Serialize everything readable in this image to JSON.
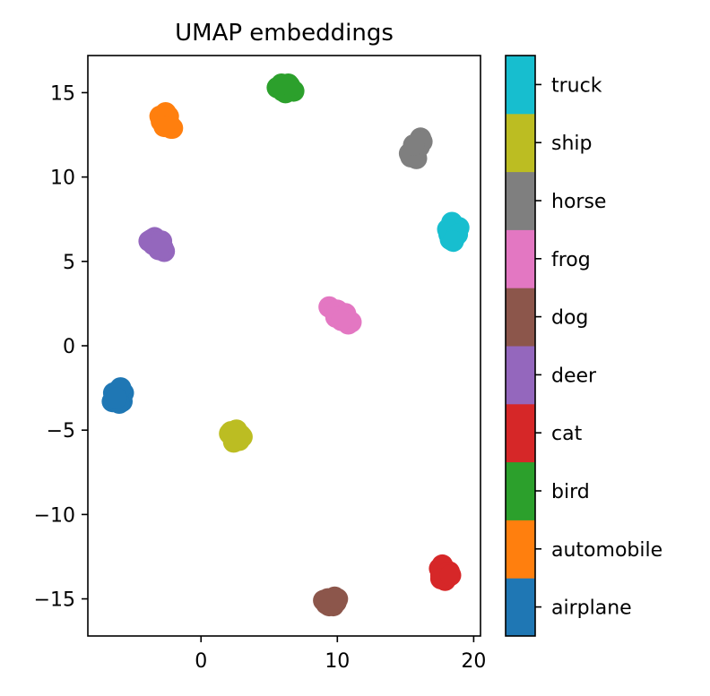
{
  "chart_data": {
    "type": "scatter",
    "title": "UMAP embeddings",
    "xlabel": "",
    "ylabel": "",
    "xlim": [
      -8.3,
      20.5
    ],
    "ylim": [
      -17.2,
      17.2
    ],
    "xticks": [
      0,
      10,
      20
    ],
    "yticks": [
      -15,
      -10,
      -5,
      0,
      5,
      10,
      15
    ],
    "xtick_labels": [
      "0",
      "10",
      "20"
    ],
    "ytick_labels": [
      "−15",
      "−10",
      "−5",
      "0",
      "5",
      "10",
      "15"
    ],
    "grid": false,
    "colorbar": {
      "labels": [
        "airplane",
        "automobile",
        "bird",
        "cat",
        "deer",
        "dog",
        "frog",
        "horse",
        "ship",
        "truck"
      ],
      "colors": [
        "#1f77b4",
        "#ff7f0e",
        "#2ca02c",
        "#d62728",
        "#9467bd",
        "#8c564b",
        "#e377c2",
        "#7f7f7f",
        "#bcbd22",
        "#17becf"
      ]
    },
    "clusters": [
      {
        "class": "airplane",
        "color": "#1f77b4",
        "points": [
          [
            -6.3,
            -3.0
          ],
          [
            -6.0,
            -2.6
          ],
          [
            -5.8,
            -3.3
          ],
          [
            -6.5,
            -3.3
          ],
          [
            -6.1,
            -2.9
          ],
          [
            -5.7,
            -2.8
          ],
          [
            -6.4,
            -2.8
          ],
          [
            -6.0,
            -3.4
          ],
          [
            -5.9,
            -2.5
          ],
          [
            -6.2,
            -3.1
          ]
        ]
      },
      {
        "class": "automobile",
        "color": "#ff7f0e",
        "points": [
          [
            -2.8,
            13.5
          ],
          [
            -2.5,
            13.2
          ],
          [
            -2.2,
            12.9
          ],
          [
            -3.0,
            13.6
          ],
          [
            -2.6,
            13.8
          ],
          [
            -2.3,
            13.1
          ],
          [
            -2.9,
            13.3
          ],
          [
            -2.4,
            13.6
          ],
          [
            -2.1,
            12.9
          ],
          [
            -2.7,
            13.0
          ]
        ]
      },
      {
        "class": "bird",
        "color": "#2ca02c",
        "points": [
          [
            5.8,
            15.3
          ],
          [
            6.2,
            15.4
          ],
          [
            6.6,
            15.2
          ],
          [
            6.0,
            15.1
          ],
          [
            6.4,
            15.5
          ],
          [
            5.6,
            15.3
          ],
          [
            6.8,
            15.1
          ],
          [
            6.2,
            15.0
          ],
          [
            6.5,
            15.4
          ],
          [
            5.9,
            15.5
          ]
        ]
      },
      {
        "class": "cat",
        "color": "#d62728",
        "points": [
          [
            17.8,
            -13.3
          ],
          [
            17.6,
            -13.6
          ],
          [
            18.1,
            -13.7
          ],
          [
            17.9,
            -13.9
          ],
          [
            18.2,
            -13.4
          ],
          [
            17.5,
            -13.2
          ],
          [
            17.7,
            -13.0
          ],
          [
            18.0,
            -13.5
          ],
          [
            17.6,
            -13.8
          ],
          [
            18.3,
            -13.6
          ]
        ]
      },
      {
        "class": "deer",
        "color": "#9467bd",
        "points": [
          [
            -3.6,
            6.3
          ],
          [
            -3.2,
            6.1
          ],
          [
            -2.8,
            5.8
          ],
          [
            -3.4,
            6.4
          ],
          [
            -3.0,
            6.0
          ],
          [
            -2.7,
            5.6
          ],
          [
            -3.8,
            6.2
          ],
          [
            -3.1,
            5.7
          ],
          [
            -3.5,
            6.0
          ],
          [
            -2.9,
            6.2
          ]
        ]
      },
      {
        "class": "dog",
        "color": "#8c564b",
        "points": [
          [
            9.2,
            -15.3
          ],
          [
            9.6,
            -15.0
          ],
          [
            9.9,
            -15.2
          ],
          [
            9.4,
            -15.4
          ],
          [
            9.0,
            -15.1
          ],
          [
            9.8,
            -14.9
          ],
          [
            9.3,
            -15.0
          ],
          [
            9.7,
            -15.4
          ],
          [
            9.5,
            -15.2
          ],
          [
            10.0,
            -15.0
          ]
        ]
      },
      {
        "class": "frog",
        "color": "#e377c2",
        "points": [
          [
            9.4,
            2.3
          ],
          [
            9.8,
            2.0
          ],
          [
            10.2,
            1.8
          ],
          [
            10.5,
            1.6
          ],
          [
            10.8,
            1.3
          ],
          [
            10.0,
            2.1
          ],
          [
            10.6,
            1.9
          ],
          [
            11.0,
            1.4
          ],
          [
            9.9,
            1.7
          ],
          [
            10.3,
            1.5
          ]
        ]
      },
      {
        "class": "horse",
        "color": "#7f7f7f",
        "points": [
          [
            15.4,
            11.2
          ],
          [
            15.7,
            11.6
          ],
          [
            15.9,
            12.0
          ],
          [
            16.1,
            12.3
          ],
          [
            15.5,
            11.5
          ],
          [
            15.8,
            11.1
          ],
          [
            16.0,
            11.8
          ],
          [
            15.3,
            11.4
          ],
          [
            16.2,
            12.1
          ],
          [
            15.6,
            11.9
          ]
        ]
      },
      {
        "class": "ship",
        "color": "#bcbd22",
        "points": [
          [
            2.2,
            -5.1
          ],
          [
            2.5,
            -5.4
          ],
          [
            2.8,
            -5.6
          ],
          [
            2.3,
            -5.3
          ],
          [
            2.6,
            -5.0
          ],
          [
            2.9,
            -5.3
          ],
          [
            2.4,
            -5.7
          ],
          [
            2.1,
            -5.2
          ],
          [
            2.7,
            -5.5
          ],
          [
            3.0,
            -5.4
          ]
        ]
      },
      {
        "class": "truck",
        "color": "#17becf",
        "points": [
          [
            18.2,
            6.6
          ],
          [
            18.5,
            7.1
          ],
          [
            18.7,
            6.8
          ],
          [
            18.3,
            6.3
          ],
          [
            18.6,
            6.4
          ],
          [
            18.9,
            7.0
          ],
          [
            18.4,
            7.3
          ],
          [
            18.1,
            6.9
          ],
          [
            18.8,
            6.6
          ],
          [
            18.5,
            6.2
          ]
        ]
      }
    ]
  }
}
